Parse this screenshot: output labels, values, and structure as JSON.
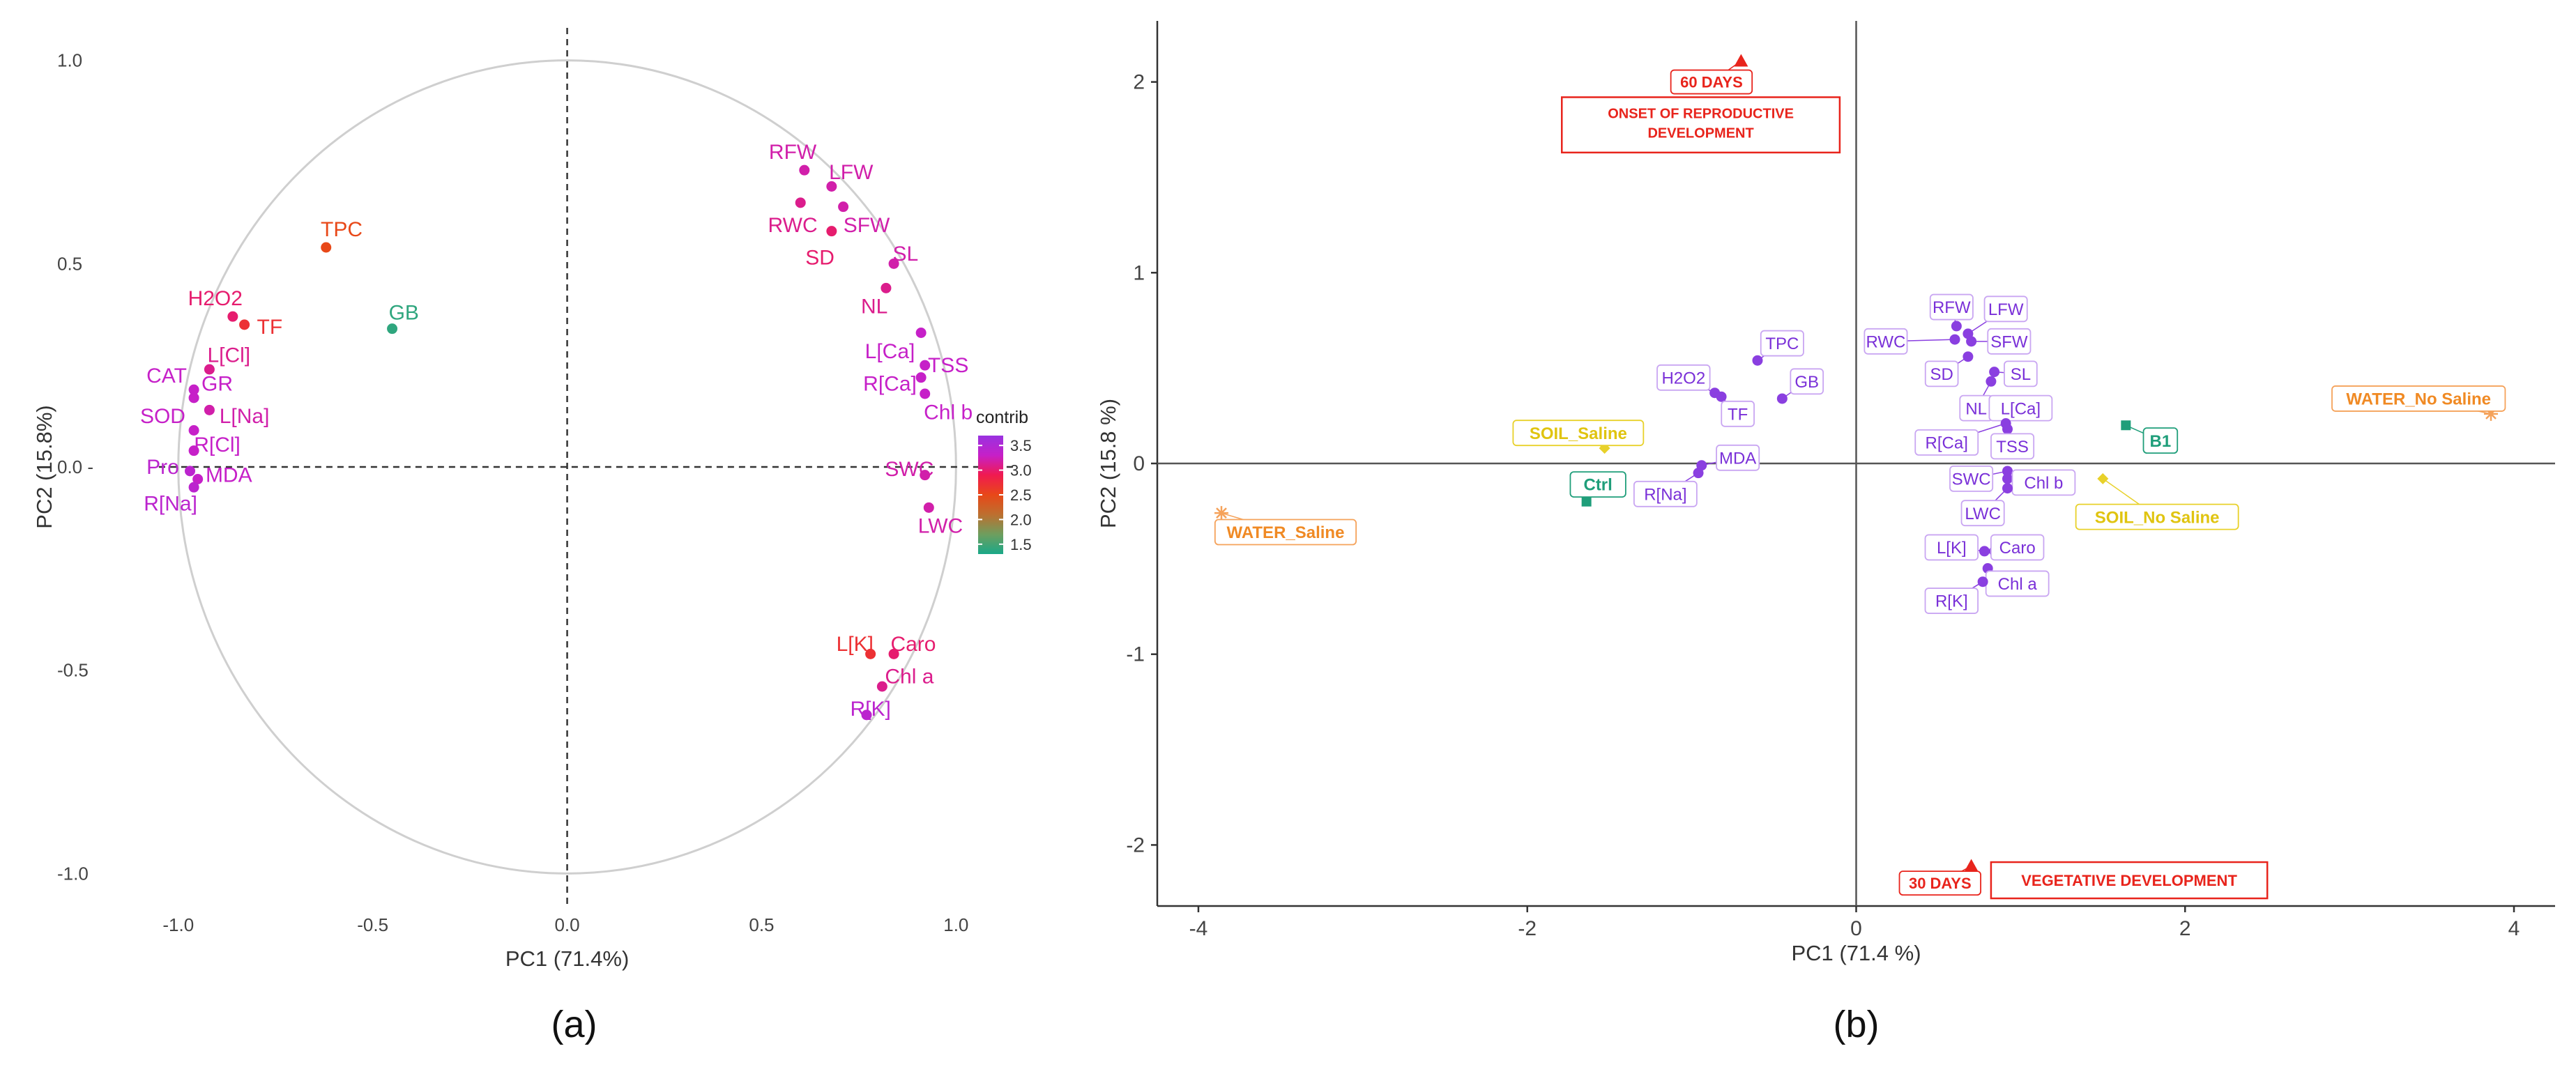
{
  "chart_data": [
    {
      "type": "scatter",
      "panel_label": "(a)",
      "xlabel": "PC1 (71.4%)",
      "ylabel": "PC2 (15.8%)",
      "xlim": [
        -1.1,
        1.15
      ],
      "ylim": [
        -1.08,
        1.08
      ],
      "x_ticks": [
        -1.0,
        -0.5,
        0.0,
        0.5,
        1.0
      ],
      "x_tick_labels": [
        "-1.0",
        "-0.5",
        "0.0",
        "0.5",
        "1.0"
      ],
      "y_ticks": [
        1.0,
        0.5,
        0.0,
        -0.5,
        -1.0
      ],
      "y_tick_labels": [
        "1.0",
        "0.5",
        "0.0 -",
        "-0.5",
        "-1.0"
      ],
      "grid": false,
      "legend": {
        "title": "contrib",
        "position": "right",
        "tick_labels": [
          "3.5",
          "3.0",
          "2.5",
          "2.0",
          "1.5"
        ],
        "ticks": [
          3.5,
          3.0,
          2.5,
          2.0,
          1.5
        ],
        "range": [
          1.3,
          3.7
        ],
        "colors": [
          "#9932e0",
          "#c620c8",
          "#f01a50",
          "#e84818",
          "#bd6f2f",
          "#6e9e5e",
          "#1aa888"
        ]
      },
      "points": [
        {
          "label": "TPC",
          "x": -0.62,
          "y": 0.54,
          "lx": -0.58,
          "ly": 0.585,
          "c": 2.5
        },
        {
          "label": "GB",
          "x": -0.45,
          "y": 0.34,
          "lx": -0.42,
          "ly": 0.38,
          "c": 1.4
        },
        {
          "label": "H2O2",
          "x": -0.86,
          "y": 0.37,
          "lx": -0.905,
          "ly": 0.415,
          "c": 3.0
        },
        {
          "label": "TF",
          "x": -0.83,
          "y": 0.35,
          "lx": -0.765,
          "ly": 0.345,
          "c": 2.7
        },
        {
          "label": "L[Cl]",
          "x": -0.92,
          "y": 0.24,
          "lx": -0.87,
          "ly": 0.275,
          "c": 3.1
        },
        {
          "label": "CAT",
          "x": -0.96,
          "y": 0.19,
          "lx": -1.03,
          "ly": 0.225,
          "c": 3.3
        },
        {
          "label": "GR",
          "x": -0.96,
          "y": 0.17,
          "lx": -0.9,
          "ly": 0.205,
          "c": 3.3
        },
        {
          "label": "L[Na]",
          "x": -0.92,
          "y": 0.14,
          "lx": -0.83,
          "ly": 0.125,
          "c": 3.2
        },
        {
          "label": "SOD",
          "x": -0.96,
          "y": 0.09,
          "lx": -1.04,
          "ly": 0.125,
          "c": 3.3
        },
        {
          "label": "R[Cl]",
          "x": -0.96,
          "y": 0.04,
          "lx": -0.9,
          "ly": 0.055,
          "c": 3.3
        },
        {
          "label": "Pro",
          "x": -0.97,
          "y": -0.01,
          "lx": -1.04,
          "ly": 0.0,
          "c": 3.4
        },
        {
          "label": "MDA",
          "x": -0.95,
          "y": -0.03,
          "lx": -0.87,
          "ly": -0.02,
          "c": 3.3
        },
        {
          "label": "R[Na]",
          "x": -0.96,
          "y": -0.05,
          "lx": -1.02,
          "ly": -0.09,
          "c": 3.4
        },
        {
          "label": "RFW",
          "x": 0.61,
          "y": 0.73,
          "lx": 0.58,
          "ly": 0.775,
          "c": 3.2
        },
        {
          "label": "LFW",
          "x": 0.68,
          "y": 0.69,
          "lx": 0.73,
          "ly": 0.725,
          "c": 3.2
        },
        {
          "label": "RWC",
          "x": 0.6,
          "y": 0.65,
          "lx": 0.58,
          "ly": 0.595,
          "c": 3.1
        },
        {
          "label": "SFW",
          "x": 0.71,
          "y": 0.64,
          "lx": 0.77,
          "ly": 0.595,
          "c": 3.2
        },
        {
          "label": "SD",
          "x": 0.68,
          "y": 0.58,
          "lx": 0.65,
          "ly": 0.515,
          "c": 3.0
        },
        {
          "label": "SL",
          "x": 0.84,
          "y": 0.5,
          "lx": 0.87,
          "ly": 0.525,
          "c": 3.2
        },
        {
          "label": "NL",
          "x": 0.82,
          "y": 0.44,
          "lx": 0.79,
          "ly": 0.395,
          "c": 3.1
        },
        {
          "label": "L[Ca]",
          "x": 0.91,
          "y": 0.33,
          "lx": 0.83,
          "ly": 0.285,
          "c": 3.3
        },
        {
          "label": "TSS",
          "x": 0.92,
          "y": 0.25,
          "lx": 0.98,
          "ly": 0.25,
          "c": 3.3
        },
        {
          "label": "R[Ca]",
          "x": 0.91,
          "y": 0.22,
          "lx": 0.83,
          "ly": 0.205,
          "c": 3.3
        },
        {
          "label": "Chl b",
          "x": 0.92,
          "y": 0.18,
          "lx": 0.98,
          "ly": 0.135,
          "c": 3.3
        },
        {
          "label": "SWC",
          "x": 0.92,
          "y": -0.02,
          "lx": 0.88,
          "ly": -0.005,
          "c": 3.2
        },
        {
          "label": "LWC",
          "x": 0.93,
          "y": -0.1,
          "lx": 0.96,
          "ly": -0.145,
          "c": 3.2
        },
        {
          "label": "L[K]",
          "x": 0.78,
          "y": -0.46,
          "lx": 0.74,
          "ly": -0.435,
          "c": 2.7
        },
        {
          "label": "Caro",
          "x": 0.84,
          "y": -0.46,
          "lx": 0.89,
          "ly": -0.435,
          "c": 3.0
        },
        {
          "label": "Chl a",
          "x": 0.81,
          "y": -0.54,
          "lx": 0.88,
          "ly": -0.515,
          "c": 3.1
        },
        {
          "label": "R[K]",
          "x": 0.77,
          "y": -0.61,
          "lx": 0.78,
          "ly": -0.595,
          "c": 3.4
        }
      ]
    },
    {
      "type": "scatter",
      "panel_label": "(b)",
      "xlabel": "PC1 (71.4 %)",
      "ylabel": "PC2 (15.8 %)",
      "xlim": [
        -4.25,
        4.25
      ],
      "ylim": [
        -2.32,
        2.32
      ],
      "x_ticks": [
        -4,
        -2,
        0,
        2,
        4
      ],
      "x_tick_labels": [
        "-4",
        "-2",
        "0",
        "2",
        "4"
      ],
      "y_ticks": [
        2,
        1,
        0,
        -1,
        -2
      ],
      "y_tick_labels": [
        "2",
        "1",
        "0",
        "-1",
        "-2"
      ],
      "grid": false,
      "variables": [
        {
          "label": "TPC",
          "x": -0.6,
          "y": 0.54,
          "lx": -0.45,
          "ly": 0.63
        },
        {
          "label": "GB",
          "x": -0.45,
          "y": 0.34,
          "lx": -0.3,
          "ly": 0.43
        },
        {
          "label": "H2O2",
          "x": -0.86,
          "y": 0.37,
          "lx": -1.05,
          "ly": 0.45
        },
        {
          "label": "TF",
          "x": -0.82,
          "y": 0.35,
          "lx": -0.72,
          "ly": 0.26
        },
        {
          "label": "MDA",
          "x": -0.94,
          "y": -0.01,
          "lx": -0.72,
          "ly": 0.03
        },
        {
          "label": "R[Na]",
          "x": -0.96,
          "y": -0.05,
          "lx": -1.16,
          "ly": -0.16
        },
        {
          "label": "RFW",
          "x": 0.61,
          "y": 0.72,
          "lx": 0.58,
          "ly": 0.82
        },
        {
          "label": "LFW",
          "x": 0.68,
          "y": 0.68,
          "lx": 0.91,
          "ly": 0.81
        },
        {
          "label": "RWC",
          "x": 0.6,
          "y": 0.65,
          "lx": 0.18,
          "ly": 0.64
        },
        {
          "label": "SFW",
          "x": 0.7,
          "y": 0.64,
          "lx": 0.93,
          "ly": 0.64
        },
        {
          "label": "SD",
          "x": 0.68,
          "y": 0.56,
          "lx": 0.52,
          "ly": 0.47
        },
        {
          "label": "SL",
          "x": 0.84,
          "y": 0.48,
          "lx": 1.0,
          "ly": 0.47
        },
        {
          "label": "NL",
          "x": 0.82,
          "y": 0.43,
          "lx": 0.73,
          "ly": 0.29
        },
        {
          "label": "L[Ca]",
          "x": 0.91,
          "y": 0.32,
          "lx": 1.0,
          "ly": 0.29
        },
        {
          "label": "R[Ca]",
          "x": 0.91,
          "y": 0.21,
          "lx": 0.55,
          "ly": 0.11
        },
        {
          "label": "TSS",
          "x": 0.92,
          "y": 0.18,
          "lx": 0.95,
          "ly": 0.09
        },
        {
          "label": "SWC",
          "x": 0.92,
          "y": -0.04,
          "lx": 0.7,
          "ly": -0.08
        },
        {
          "label": "Chl b",
          "x": 0.92,
          "y": -0.08,
          "lx": 1.14,
          "ly": -0.1
        },
        {
          "label": "LWC",
          "x": 0.92,
          "y": -0.13,
          "lx": 0.77,
          "ly": -0.26
        },
        {
          "label": "L[K]",
          "x": 0.78,
          "y": -0.46,
          "lx": 0.58,
          "ly": -0.44
        },
        {
          "label": "Caro",
          "x": 0.84,
          "y": -0.46,
          "lx": 0.98,
          "ly": -0.44
        },
        {
          "label": "Chl a",
          "x": 0.8,
          "y": -0.55,
          "lx": 0.98,
          "ly": -0.63
        },
        {
          "label": "R[K]",
          "x": 0.77,
          "y": -0.62,
          "lx": 0.58,
          "ly": -0.72
        }
      ],
      "groups": [
        {
          "label": "SOIL_Saline",
          "x": -1.53,
          "y": 0.08,
          "lx": -1.69,
          "ly": 0.16,
          "color": "#e8d12a",
          "shape": "diamond",
          "text_color": "#e0c410"
        },
        {
          "label": "SOIL_No Saline",
          "x": 1.5,
          "y": -0.08,
          "lx": 1.83,
          "ly": -0.28,
          "color": "#e8d12a",
          "shape": "diamond",
          "text_color": "#e0c410"
        },
        {
          "label": "WATER_Saline",
          "x": -3.86,
          "y": -0.26,
          "lx": -3.47,
          "ly": -0.36,
          "color": "#f5a25a",
          "shape": "star",
          "text_color": "#f08a24"
        },
        {
          "label": "WATER_No Saline",
          "x": 3.86,
          "y": 0.26,
          "lx": 3.42,
          "ly": 0.34,
          "color": "#f5a25a",
          "shape": "star",
          "text_color": "#f08a24"
        },
        {
          "label": "Ctrl",
          "x": -1.64,
          "y": -0.2,
          "lx": -1.57,
          "ly": -0.11,
          "color": "#1f9e7a",
          "shape": "square",
          "text_color": "#1f9e7a"
        },
        {
          "label": "B1",
          "x": 1.64,
          "y": 0.2,
          "lx": 1.85,
          "ly": 0.12,
          "color": "#1f9e7a",
          "shape": "square",
          "text_color": "#1f9e7a"
        }
      ],
      "annotations": [
        {
          "label": "60 DAYS",
          "x": -0.7,
          "y": 2.11,
          "lx": -0.88,
          "ly": 2.0
        },
        {
          "label": "30 DAYS",
          "x": 0.7,
          "y": -2.11,
          "lx": 0.51,
          "ly": -2.2
        }
      ],
      "annotation_boxes": {
        "reproductive": [
          "ONSET OF REPRODUCTIVE",
          "DEVELOPMENT"
        ],
        "vegetative": "VEGETATIVE DEVELOPMENT"
      }
    }
  ]
}
